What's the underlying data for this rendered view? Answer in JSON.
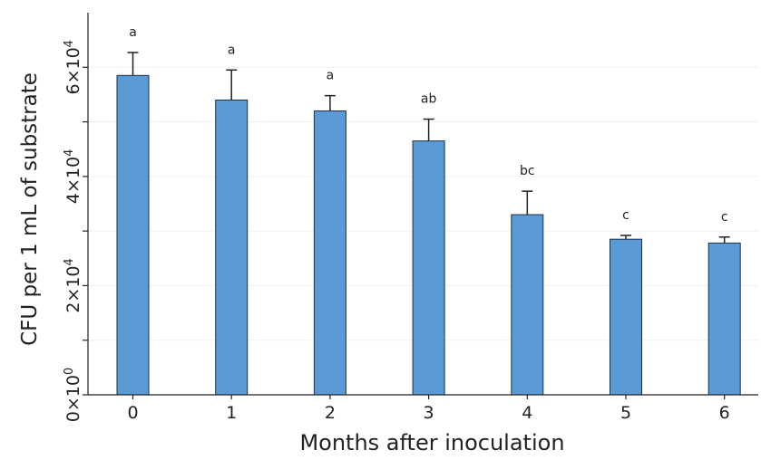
{
  "chart_data": {
    "type": "bar",
    "categories": [
      "0",
      "1",
      "2",
      "3",
      "4",
      "5",
      "6"
    ],
    "values": [
      58500,
      54000,
      52000,
      46500,
      33000,
      28500,
      27800
    ],
    "error": [
      4200,
      5500,
      2800,
      4000,
      4300,
      700,
      1100
    ],
    "significance_labels": [
      "a",
      "a",
      "a",
      "ab",
      "bc",
      "c",
      "c"
    ],
    "xlabel": "Months after inoculation",
    "ylabel": "CFU per 1 mL of substrate",
    "ylim": [
      0,
      70000
    ],
    "yticks": [
      0,
      10000,
      20000,
      30000,
      40000,
      50000,
      60000
    ],
    "ytick_labels": [
      {
        "value": 0,
        "mantissa": "0×10",
        "exp": "0"
      },
      {
        "value": 20000,
        "mantissa": "2×10",
        "exp": "4"
      },
      {
        "value": 40000,
        "mantissa": "4×10",
        "exp": "4"
      },
      {
        "value": 60000,
        "mantissa": "6×10",
        "exp": "4"
      }
    ],
    "grid": true,
    "bar_color": "#5b9bd5",
    "bar_edge_color": "#1f2f44"
  }
}
